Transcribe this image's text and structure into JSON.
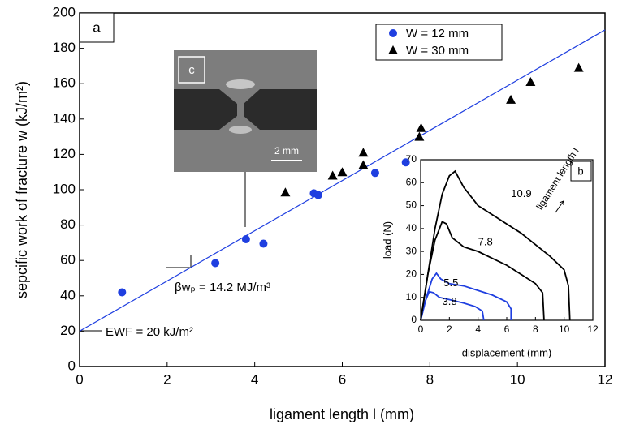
{
  "chart_data": [
    {
      "type": "scatter",
      "x_label": "ligament length l (mm)",
      "y_label": "sepcific work of fracture w (kJ/m²)",
      "panel_label": "a",
      "xlim": [
        0,
        12
      ],
      "xticks": [
        0,
        2,
        4,
        6,
        8,
        10,
        12
      ],
      "ylim": [
        0,
        200
      ],
      "yticks": [
        0,
        20,
        40,
        60,
        80,
        100,
        120,
        140,
        160,
        180,
        200
      ],
      "legend": "top-right",
      "series": [
        {
          "name": "W = 12 mm",
          "color": "#1f3fe0",
          "marker": "circle",
          "x": [
            0.97,
            3.1,
            3.8,
            4.2,
            5.35,
            5.45,
            6.75,
            7.45
          ],
          "values": [
            42,
            58.5,
            72,
            69.5,
            98,
            97,
            109.5,
            115.5
          ]
        },
        {
          "name": "W = 30 mm",
          "color": "#000000",
          "marker": "triangle",
          "x": [
            4.7,
            5.78,
            6.0,
            6.48,
            6.48,
            7.76,
            7.8,
            9.85,
            10.3,
            11.4
          ],
          "values": [
            98.5,
            108,
            110,
            114,
            121,
            130,
            135,
            151,
            161,
            169
          ]
        }
      ],
      "fit_line": {
        "color": "#1f3fe0",
        "x": [
          0,
          12
        ],
        "values": [
          20,
          190.4
        ]
      },
      "annotations": {
        "slope": "βwₚ = 14.2 MJ/m³",
        "intercept": "EWF = 20 kJ/m²",
        "image_label": "c",
        "scale_bar": "2 mm"
      }
    },
    {
      "type": "line",
      "x_label": "displacement (mm)",
      "y_label": "load (N)",
      "panel_label": "b",
      "arrow_label": "ligament length l",
      "xlim": [
        0,
        12
      ],
      "xticks": [
        0,
        2,
        4,
        6,
        8,
        10,
        12
      ],
      "ylim": [
        0,
        70
      ],
      "yticks": [
        0,
        10,
        20,
        30,
        40,
        50,
        60,
        70
      ],
      "series": [
        {
          "name": "3.8",
          "color": "#1f3fe0",
          "x": [
            0,
            0.3,
            0.6,
            0.9,
            1.3,
            2,
            3,
            3.8,
            4.3,
            4.4
          ],
          "values": [
            0,
            8,
            12.5,
            12,
            10,
            9,
            7.5,
            6,
            4,
            0
          ]
        },
        {
          "name": "5.5",
          "color": "#1f3fe0",
          "x": [
            0,
            0.4,
            0.8,
            1.1,
            1.4,
            2,
            3,
            4,
            5,
            6,
            6.3,
            6.3
          ],
          "values": [
            0,
            10,
            18,
            20.5,
            18,
            16,
            15,
            13,
            11,
            8,
            5,
            0
          ]
        },
        {
          "name": "7.8",
          "color": "#000000",
          "x": [
            0,
            0.5,
            1,
            1.5,
            1.8,
            2.2,
            3,
            4,
            5,
            6,
            7,
            8,
            8.5,
            8.6
          ],
          "values": [
            0,
            20,
            35,
            43,
            42,
            36,
            32,
            30,
            27,
            24,
            20,
            16,
            12,
            0
          ]
        },
        {
          "name": "10.9",
          "color": "#000000",
          "x": [
            0,
            0.5,
            1,
            1.5,
            2,
            2.4,
            3,
            4,
            5,
            6,
            7,
            8,
            9,
            10,
            10.3,
            10.4
          ],
          "values": [
            0,
            20,
            40,
            55,
            63,
            65,
            58,
            50,
            46,
            42,
            38,
            33,
            28,
            22,
            15,
            0
          ]
        }
      ]
    }
  ]
}
